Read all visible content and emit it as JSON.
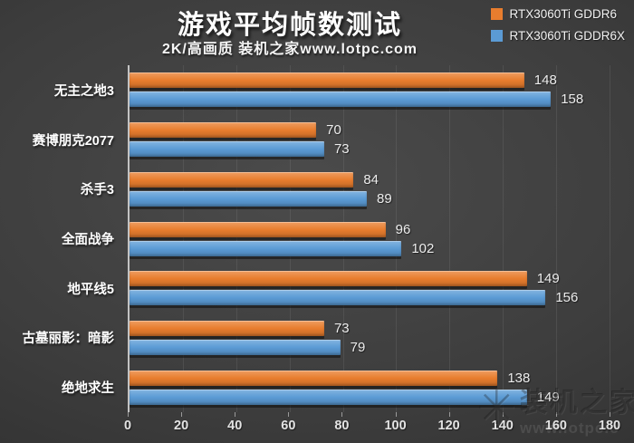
{
  "title": "游戏平均帧数测试",
  "subtitle": "2K/高画质 装机之家www.lotpc.com",
  "legend": {
    "items": [
      {
        "label": "RTX3060Ti GDDR6",
        "color": "#E87D2E"
      },
      {
        "label": "RTX3060Ti GDDR6X",
        "color": "#5B9BD5"
      }
    ]
  },
  "watermark": {
    "star": "✳",
    "brand": "装机之家",
    "url": "www.lotpc.c"
  },
  "chart_data": {
    "type": "bar",
    "orientation": "horizontal",
    "title": "游戏平均帧数测试",
    "subtitle": "2K/高画质 装机之家www.lotpc.com",
    "categories": [
      "无主之地3",
      "赛博朋克2077",
      "杀手3",
      "全面战争",
      "地平线5",
      "古墓丽影：暗影",
      "绝地求生"
    ],
    "series": [
      {
        "name": "RTX3060Ti GDDR6",
        "color": "#E87D2E",
        "values": [
          148,
          70,
          84,
          96,
          149,
          73,
          138
        ]
      },
      {
        "name": "RTX3060Ti GDDR6X",
        "color": "#5B9BD5",
        "values": [
          158,
          73,
          89,
          102,
          156,
          79,
          149
        ]
      }
    ],
    "xlabel": "",
    "ylabel": "",
    "xlim": [
      0,
      180
    ],
    "xticks": [
      0,
      20,
      40,
      60,
      80,
      100,
      120,
      140,
      160,
      180
    ],
    "grid": true,
    "legend_position": "top-right",
    "background": "#3d3d3d"
  }
}
